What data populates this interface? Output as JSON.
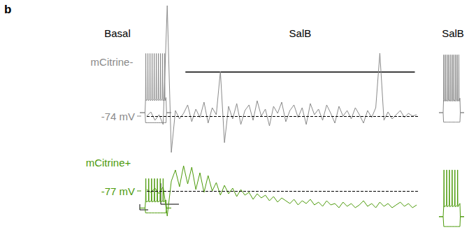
{
  "chart_data": {
    "type": "line",
    "label": "b",
    "tick_labels": false,
    "grid": false,
    "application": {
      "label": "SalB",
      "start": 85,
      "end": 590
    },
    "rows": [
      {
        "name": "mCitrine-",
        "color": "#8a8a8a",
        "resting_potential": -74,
        "resting_label": "-74 mV",
        "recording": {
          "xlim": [
            0,
            600
          ],
          "ylim": [
            -110,
            6
          ],
          "x": [
            0,
            9,
            18,
            27,
            36,
            45,
            54,
            63,
            72,
            81,
            90,
            99,
            108,
            117,
            126,
            135,
            144,
            153,
            162,
            171,
            180,
            189,
            198,
            207,
            216,
            225,
            234,
            243,
            252,
            261,
            270,
            279,
            288,
            297,
            306,
            315,
            324,
            333,
            342,
            351,
            360,
            369,
            378,
            387,
            396,
            405,
            414,
            423,
            432,
            441,
            450,
            459,
            468,
            477,
            486,
            495,
            504,
            513,
            522,
            531,
            540,
            549,
            558,
            567,
            576,
            585,
            594
          ],
          "values": [
            -74,
            -71,
            -77,
            -73,
            -80,
            5,
            -100,
            -70,
            -76,
            -72,
            -66,
            -78,
            -69,
            -75,
            -64,
            -79,
            -68,
            -73,
            -42,
            -93,
            -67,
            -76,
            -65,
            -80,
            -70,
            -66,
            -77,
            -63,
            -74,
            -69,
            -81,
            -67,
            -72,
            -64,
            -78,
            -70,
            -66,
            -75,
            -68,
            -80,
            -65,
            -73,
            -69,
            -77,
            -66,
            -72,
            -79,
            -67,
            -74,
            -70,
            -76,
            -68,
            -73,
            -79,
            -70,
            -75,
            -68,
            -29,
            -77,
            -71,
            -76,
            -73,
            -70,
            -75,
            -72,
            -74,
            -73
          ]
        },
        "steps": [
          {
            "title": "Basal",
            "xlim": [
              0,
              600
            ],
            "ylim": [
              -95,
              25
            ],
            "x": [
              0,
              100,
              110,
              115,
              120,
              150,
              155,
              160,
              190,
              195,
              200,
              230,
              235,
              240,
              270,
              275,
              280,
              310,
              315,
              320,
              350,
              355,
              360,
              390,
              395,
              400,
              430,
              435,
              440,
              470,
              475,
              480,
              500,
              510,
              600
            ],
            "series": [
              {
                "values": [
                  -74,
                  -74,
                  -52,
                  20,
                  -55,
                  -52,
                  20,
                  -55,
                  -52,
                  20,
                  -55,
                  -52,
                  20,
                  -55,
                  -52,
                  20,
                  -55,
                  -52,
                  20,
                  -55,
                  -52,
                  20,
                  -55,
                  -52,
                  20,
                  -55,
                  -52,
                  20,
                  -55,
                  -52,
                  20,
                  -55,
                  -50,
                  -74,
                  -74
                ]
              },
              {
                "values": [
                  -74,
                  -74,
                  -90,
                  -90,
                  -90,
                  -90,
                  -90,
                  -90,
                  -90,
                  -90,
                  -90,
                  -90,
                  -90,
                  -90,
                  -90,
                  -90,
                  -90,
                  -90,
                  -90,
                  -90,
                  -90,
                  -90,
                  -90,
                  -90,
                  -90,
                  -90,
                  -90,
                  -90,
                  -90,
                  -90,
                  -90,
                  -90,
                  -90,
                  -74,
                  -74
                ]
              }
            ]
          },
          {
            "title": "SalB",
            "xlim": [
              0,
              600
            ],
            "ylim": [
              -95,
              25
            ],
            "x": [
              0,
              100,
              110,
              115,
              120,
              150,
              155,
              160,
              190,
              195,
              200,
              230,
              235,
              240,
              270,
              275,
              280,
              310,
              315,
              320,
              350,
              355,
              360,
              390,
              395,
              400,
              430,
              435,
              440,
              470,
              475,
              480,
              500,
              510,
              600
            ],
            "series": [
              {
                "values": [
                  -74,
                  -74,
                  -53,
                  18,
                  -56,
                  -53,
                  18,
                  -56,
                  -53,
                  18,
                  -56,
                  -53,
                  18,
                  -56,
                  -53,
                  18,
                  -56,
                  -53,
                  18,
                  -56,
                  -53,
                  18,
                  -56,
                  -53,
                  18,
                  -56,
                  -53,
                  18,
                  -56,
                  -53,
                  18,
                  -56,
                  -51,
                  -74,
                  -74
                ]
              },
              {
                "values": [
                  -74,
                  -74,
                  -89,
                  -89,
                  -89,
                  -89,
                  -89,
                  -89,
                  -89,
                  -89,
                  -89,
                  -89,
                  -89,
                  -89,
                  -89,
                  -89,
                  -89,
                  -89,
                  -89,
                  -89,
                  -89,
                  -89,
                  -89,
                  -89,
                  -89,
                  -89,
                  -89,
                  -89,
                  -89,
                  -89,
                  -89,
                  -89,
                  -89,
                  -74,
                  -74
                ]
              }
            ]
          }
        ]
      },
      {
        "name": "mCitrine+",
        "color": "#4c9a0a",
        "resting_potential": -77,
        "resting_label": "-77 mV",
        "recording": {
          "xlim": [
            0,
            600
          ],
          "ylim": [
            -100,
            -58
          ],
          "x": [
            0,
            9,
            18,
            27,
            36,
            45,
            54,
            63,
            72,
            81,
            90,
            99,
            108,
            117,
            126,
            135,
            144,
            153,
            162,
            171,
            180,
            189,
            198,
            207,
            216,
            225,
            234,
            243,
            252,
            261,
            270,
            279,
            288,
            297,
            306,
            315,
            324,
            333,
            342,
            351,
            360,
            369,
            378,
            387,
            396,
            405,
            414,
            423,
            432,
            441,
            450,
            459,
            468,
            477,
            486,
            495,
            504,
            513,
            522,
            531,
            540,
            549,
            558,
            567,
            576,
            585,
            594
          ],
          "values": [
            -76,
            -78,
            -75,
            -79,
            -74,
            -95,
            -70,
            -62,
            -74,
            -59,
            -72,
            -60,
            -76,
            -64,
            -78,
            -66,
            -77,
            -71,
            -80,
            -73,
            -79,
            -75,
            -81,
            -76,
            -80,
            -78,
            -83,
            -79,
            -82,
            -80,
            -84,
            -81,
            -85,
            -82,
            -84,
            -86,
            -83,
            -87,
            -84,
            -86,
            -83,
            -87,
            -85,
            -88,
            -84,
            -87,
            -86,
            -89,
            -85,
            -88,
            -86,
            -89,
            -87,
            -84,
            -88,
            -86,
            -89,
            -85,
            -88,
            -86,
            -89,
            -87,
            -85,
            -88,
            -86,
            -89,
            -87
          ]
        },
        "steps": [
          {
            "xlim": [
              0,
              600
            ],
            "ylim": [
              -100,
              20
            ],
            "x": [
              0,
              100,
              110,
              115,
              120,
              165,
              170,
              175,
              220,
              225,
              230,
              275,
              280,
              285,
              330,
              335,
              340,
              385,
              390,
              395,
              440,
              445,
              450,
              500,
              510,
              600
            ],
            "series": [
              {
                "values": [
                  -77,
                  -77,
                  -55,
                  15,
                  -58,
                  -55,
                  15,
                  -58,
                  -55,
                  15,
                  -58,
                  -55,
                  15,
                  -58,
                  -55,
                  15,
                  -58,
                  -55,
                  15,
                  -58,
                  -55,
                  15,
                  -58,
                  -52,
                  -77,
                  -77
                ]
              },
              {
                "values": [
                  -77,
                  -77,
                  -92,
                  -92,
                  -92,
                  -92,
                  -92,
                  -92,
                  -92,
                  -92,
                  -92,
                  -92,
                  -92,
                  -92,
                  -92,
                  -92,
                  -92,
                  -92,
                  -92,
                  -92,
                  -92,
                  -92,
                  -92,
                  -92,
                  -77,
                  -77
                ]
              }
            ]
          },
          {
            "xlim": [
              0,
              600
            ],
            "ylim": [
              -100,
              25
            ],
            "x": [
              0,
              100,
              115,
              120,
              125,
              180,
              185,
              190,
              245,
              250,
              255,
              310,
              315,
              320,
              375,
              380,
              385,
              440,
              445,
              450,
              500,
              510,
              600
            ],
            "series": [
              {
                "values": [
                  -77,
                  -77,
                  -54,
                  18,
                  -57,
                  -54,
                  18,
                  -57,
                  -54,
                  18,
                  -57,
                  -54,
                  18,
                  -57,
                  -54,
                  18,
                  -57,
                  -54,
                  18,
                  -57,
                  -50,
                  -77,
                  -77
                ]
              },
              {
                "values": [
                  -77,
                  -77,
                  -97,
                  -97,
                  -97,
                  -97,
                  -97,
                  -97,
                  -97,
                  -97,
                  -97,
                  -97,
                  -97,
                  -97,
                  -97,
                  -97,
                  -97,
                  -97,
                  -97,
                  -97,
                  -97,
                  -77,
                  -77
                ]
              }
            ]
          }
        ]
      }
    ]
  }
}
